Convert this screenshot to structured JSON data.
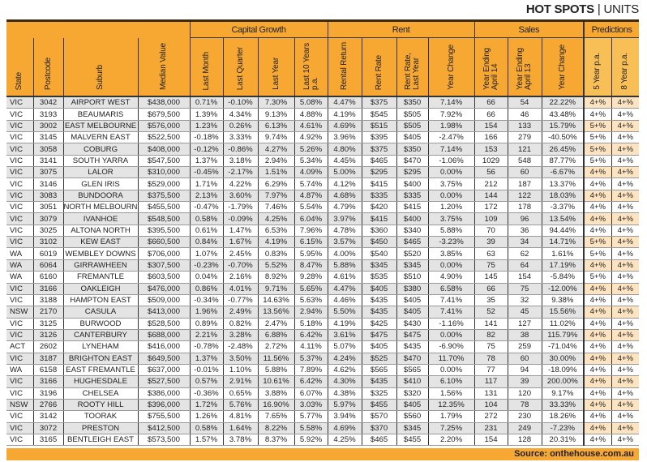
{
  "header": {
    "title_bold": "HOT SPOTS",
    "separator": "|",
    "title_rest": "UNITS"
  },
  "groups": {
    "capital_growth": "Capital Growth",
    "rent": "Rent",
    "sales": "Sales",
    "predictions": "Predictions"
  },
  "columns": [
    "State",
    "Postcode",
    "Suburb",
    "Median Value",
    "Last Month",
    "Last Quarter",
    "Last Year",
    "Last 10 Years p.a.",
    "Rental Return",
    "Rent Rate",
    "Rent Rate, Last Year",
    "Year Change",
    "Year Ending April 14",
    "Year Ending April 13",
    "Year Change",
    "5 Year p.a.",
    "8 Year p.a."
  ],
  "colors": {
    "header_orange": "#f7a833",
    "row_alt": "#e4e4e4",
    "prediction_alt": "#fde3bf"
  },
  "rows": [
    [
      "VIC",
      "3042",
      "AIRPORT WEST",
      "$438,000",
      "0.71%",
      "-0.10%",
      "7.30%",
      "5.08%",
      "4.47%",
      "$375",
      "$350",
      "7.14%",
      "66",
      "54",
      "22.22%",
      "4+%",
      "4+%"
    ],
    [
      "VIC",
      "3193",
      "BEAUMARIS",
      "$679,500",
      "1.39%",
      "4.34%",
      "9.13%",
      "4.88%",
      "4.19%",
      "$545",
      "$505",
      "7.92%",
      "66",
      "46",
      "43.48%",
      "4+%",
      "4+%"
    ],
    [
      "VIC",
      "3002",
      "EAST MELBOURNE",
      "$576,000",
      "1.23%",
      "0.26%",
      "6.13%",
      "4.61%",
      "4.69%",
      "$515",
      "$505",
      "1.98%",
      "154",
      "133",
      "15.79%",
      "5+%",
      "4+%"
    ],
    [
      "VIC",
      "3145",
      "MALVERN EAST",
      "$522,500",
      "-0.18%",
      "3.33%",
      "9.74%",
      "4.92%",
      "3.96%",
      "$395",
      "$405",
      "-2.47%",
      "166",
      "279",
      "-40.50%",
      "5+%",
      "4+%"
    ],
    [
      "VIC",
      "3058",
      "COBURG",
      "$408,000",
      "-0.12%",
      "-0.86%",
      "4.27%",
      "5.26%",
      "4.80%",
      "$375",
      "$350",
      "7.14%",
      "153",
      "121",
      "26.45%",
      "5+%",
      "4+%"
    ],
    [
      "VIC",
      "3141",
      "SOUTH YARRA",
      "$547,500",
      "1.37%",
      "3.18%",
      "2.94%",
      "5.34%",
      "4.45%",
      "$465",
      "$470",
      "-1.06%",
      "1029",
      "548",
      "87.77%",
      "5+%",
      "4+%"
    ],
    [
      "VIC",
      "3075",
      "LALOR",
      "$310,000",
      "-0.45%",
      "-2.17%",
      "1.51%",
      "4.09%",
      "5.00%",
      "$295",
      "$295",
      "0.00%",
      "56",
      "60",
      "-6.67%",
      "4+%",
      "4+%"
    ],
    [
      "VIC",
      "3146",
      "GLEN IRIS",
      "$529,000",
      "1.71%",
      "4.22%",
      "6.29%",
      "5.74%",
      "4.12%",
      "$415",
      "$400",
      "3.75%",
      "212",
      "187",
      "13.37%",
      "4+%",
      "4+%"
    ],
    [
      "VIC",
      "3083",
      "BUNDOORA",
      "$375,500",
      "2.13%",
      "3.60%",
      "7.97%",
      "4.87%",
      "4.68%",
      "$335",
      "$335",
      "0.00%",
      "144",
      "122",
      "18.03%",
      "4+%",
      "4+%"
    ],
    [
      "VIC",
      "3051",
      "NORTH MELBOURNE",
      "$455,500",
      "-0.47%",
      "-1.79%",
      "7.46%",
      "5.54%",
      "4.79%",
      "$420",
      "$415",
      "1.20%",
      "172",
      "178",
      "-3.37%",
      "4+%",
      "4+%"
    ],
    [
      "VIC",
      "3079",
      "IVANHOE",
      "$548,500",
      "0.58%",
      "-0.09%",
      "4.25%",
      "6.04%",
      "3.97%",
      "$415",
      "$400",
      "3.75%",
      "109",
      "96",
      "13.54%",
      "4+%",
      "4+%"
    ],
    [
      "VIC",
      "3025",
      "ALTONA NORTH",
      "$395,500",
      "0.61%",
      "1.47%",
      "6.53%",
      "7.96%",
      "4.78%",
      "$360",
      "$340",
      "5.88%",
      "70",
      "36",
      "94.44%",
      "4+%",
      "4+%"
    ],
    [
      "VIC",
      "3102",
      "KEW EAST",
      "$660,500",
      "0.84%",
      "1.67%",
      "4.19%",
      "6.15%",
      "3.57%",
      "$450",
      "$465",
      "-3.23%",
      "39",
      "34",
      "14.71%",
      "5+%",
      "4+%"
    ],
    [
      "WA",
      "6019",
      "WEMBLEY DOWNS",
      "$706,000",
      "1.07%",
      "2.45%",
      "0.83%",
      "5.95%",
      "4.00%",
      "$540",
      "$520",
      "3.85%",
      "63",
      "62",
      "1.61%",
      "5+%",
      "4+%"
    ],
    [
      "WA",
      "6064",
      "GIRRAWHEEN",
      "$307,500",
      "-0.23%",
      "-0.70%",
      "5.52%",
      "8.47%",
      "5.88%",
      "$345",
      "$345",
      "0.00%",
      "75",
      "64",
      "17.19%",
      "4+%",
      "4+%"
    ],
    [
      "WA",
      "6160",
      "FREMANTLE",
      "$603,500",
      "0.04%",
      "2.16%",
      "8.92%",
      "9.28%",
      "4.61%",
      "$535",
      "$510",
      "4.90%",
      "145",
      "154",
      "-5.84%",
      "5+%",
      "4+%"
    ],
    [
      "VIC",
      "3166",
      "OAKLEIGH",
      "$476,000",
      "0.86%",
      "4.01%",
      "9.71%",
      "5.65%",
      "4.47%",
      "$405",
      "$380",
      "6.58%",
      "66",
      "75",
      "-12.00%",
      "4+%",
      "4+%"
    ],
    [
      "VIC",
      "3188",
      "HAMPTON EAST",
      "$509,000",
      "-0.34%",
      "-0.77%",
      "14.63%",
      "5.63%",
      "4.46%",
      "$435",
      "$405",
      "7.41%",
      "35",
      "32",
      "9.38%",
      "4+%",
      "4+%"
    ],
    [
      "NSW",
      "2170",
      "CASULA",
      "$413,000",
      "1.96%",
      "2.49%",
      "13.56%",
      "2.94%",
      "5.50%",
      "$435",
      "$405",
      "7.41%",
      "52",
      "45",
      "15.56%",
      "4+%",
      "4+%"
    ],
    [
      "VIC",
      "3125",
      "BURWOOD",
      "$528,500",
      "0.89%",
      "0.82%",
      "2.47%",
      "5.18%",
      "4.19%",
      "$425",
      "$430",
      "-1.16%",
      "141",
      "127",
      "11.02%",
      "4+%",
      "4+%"
    ],
    [
      "VIC",
      "3126",
      "CANTERBURY",
      "$688,000",
      "2.21%",
      "3.28%",
      "6.88%",
      "6.42%",
      "3.61%",
      "$475",
      "$475",
      "0.00%",
      "82",
      "38",
      "115.79%",
      "4+%",
      "4+%"
    ],
    [
      "ACT",
      "2602",
      "LYNEHAM",
      "$416,000",
      "-0.78%",
      "-2.48%",
      "2.72%",
      "4.11%",
      "5.07%",
      "$405",
      "$435",
      "-6.90%",
      "75",
      "259",
      "-71.04%",
      "4+%",
      "4+%"
    ],
    [
      "VIC",
      "3187",
      "BRIGHTON EAST",
      "$649,500",
      "1.37%",
      "3.50%",
      "11.56%",
      "5.37%",
      "4.24%",
      "$525",
      "$470",
      "11.70%",
      "78",
      "60",
      "30.00%",
      "4+%",
      "4+%"
    ],
    [
      "WA",
      "6158",
      "EAST FREMANTLE",
      "$637,000",
      "-0.01%",
      "1.10%",
      "5.88%",
      "7.89%",
      "4.62%",
      "$565",
      "$565",
      "0.00%",
      "77",
      "94",
      "-18.09%",
      "4+%",
      "4+%"
    ],
    [
      "VIC",
      "3166",
      "HUGHESDALE",
      "$527,500",
      "0.57%",
      "2.91%",
      "10.61%",
      "6.42%",
      "4.30%",
      "$435",
      "$410",
      "6.10%",
      "117",
      "39",
      "200.00%",
      "4+%",
      "4+%"
    ],
    [
      "VIC",
      "3196",
      "CHELSEA",
      "$386,000",
      "-0.36%",
      "0.65%",
      "3.88%",
      "6.07%",
      "4.38%",
      "$325",
      "$320",
      "1.56%",
      "131",
      "120",
      "9.17%",
      "4+%",
      "4+%"
    ],
    [
      "NSW",
      "2766",
      "ROOTY HILL",
      "$396,000",
      "1.72%",
      "5.76%",
      "16.90%",
      "3.03%",
      "5.97%",
      "$455",
      "$405",
      "12.35%",
      "104",
      "78",
      "33.33%",
      "4+%",
      "4+%"
    ],
    [
      "VIC",
      "3142",
      "TOORAK",
      "$755,500",
      "1.26%",
      "4.81%",
      "7.65%",
      "5.77%",
      "3.94%",
      "$570",
      "$560",
      "1.79%",
      "272",
      "230",
      "18.26%",
      "4+%",
      "4+%"
    ],
    [
      "VIC",
      "3072",
      "PRESTON",
      "$412,500",
      "0.58%",
      "1.64%",
      "8.22%",
      "5.58%",
      "4.69%",
      "$370",
      "$345",
      "7.25%",
      "231",
      "249",
      "-7.23%",
      "4+%",
      "4+%"
    ],
    [
      "VIC",
      "3165",
      "BENTLEIGH EAST",
      "$573,500",
      "1.57%",
      "3.78%",
      "8.37%",
      "5.92%",
      "4.25%",
      "$465",
      "$455",
      "2.20%",
      "154",
      "128",
      "20.31%",
      "4+%",
      "4+%"
    ]
  ],
  "footer": {
    "source": "Source: onthehouse.com.au"
  }
}
